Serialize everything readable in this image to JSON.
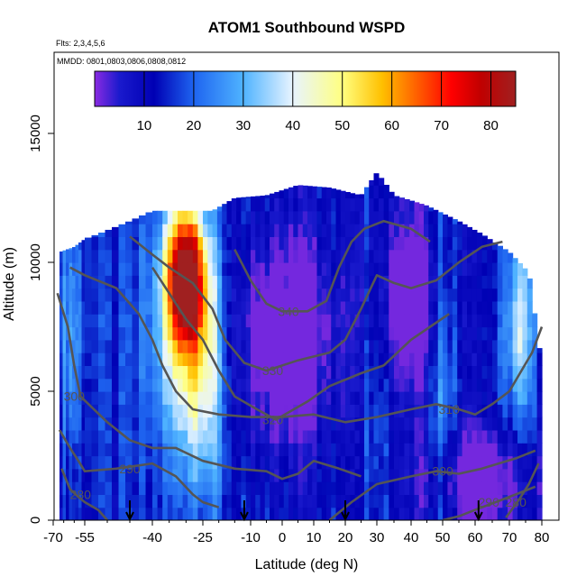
{
  "chart_data": {
    "type": "heatmap",
    "title": "ATOM1 Southbound WSPD",
    "flights_label": "Flts: 2,3,4,5,6",
    "dates_label": "MMDD: 0801,0803,0806,0808,0812",
    "xlabel": "Latitude (deg N)",
    "ylabel": "Altitude (m)",
    "xlim": [
      -70,
      85
    ],
    "ylim": [
      0,
      18000
    ],
    "x_ticks": [
      -70,
      -55,
      -40,
      -25,
      -10,
      0,
      10,
      20,
      30,
      40,
      50,
      60,
      70,
      80
    ],
    "y_ticks": [
      0,
      5000,
      10000,
      15000
    ],
    "colorbar": {
      "range": [
        0,
        85
      ],
      "ticks": [
        10,
        20,
        30,
        40,
        50,
        60,
        70,
        80
      ],
      "stops": [
        {
          "v": 0,
          "c": "#8a2be2"
        },
        {
          "v": 5,
          "c": "#1a1acd"
        },
        {
          "v": 12,
          "c": "#0000b4"
        },
        {
          "v": 20,
          "c": "#1e64f0"
        },
        {
          "v": 30,
          "c": "#4fb3ff"
        },
        {
          "v": 40,
          "c": "#e8f4ff"
        },
        {
          "v": 50,
          "c": "#ffff80"
        },
        {
          "v": 58,
          "c": "#ffc000"
        },
        {
          "v": 65,
          "c": "#ff6000"
        },
        {
          "v": 72,
          "c": "#ff0000"
        },
        {
          "v": 78,
          "c": "#c00000"
        },
        {
          "v": 85,
          "c": "#a02020"
        }
      ]
    },
    "envelope_top": [
      {
        "x": -67,
        "alt": 10400
      },
      {
        "x": -60,
        "alt": 10600
      },
      {
        "x": -52,
        "alt": 11100
      },
      {
        "x": -45,
        "alt": 11600
      },
      {
        "x": -40,
        "alt": 12000
      },
      {
        "x": -30,
        "alt": 12000
      },
      {
        "x": -22,
        "alt": 12000
      },
      {
        "x": -15,
        "alt": 12500
      },
      {
        "x": -5,
        "alt": 12600
      },
      {
        "x": 5,
        "alt": 13000
      },
      {
        "x": 15,
        "alt": 12900
      },
      {
        "x": 25,
        "alt": 12600
      },
      {
        "x": 30,
        "alt": 13500
      },
      {
        "x": 35,
        "alt": 12600
      },
      {
        "x": 45,
        "alt": 12200
      },
      {
        "x": 55,
        "alt": 11600
      },
      {
        "x": 62,
        "alt": 11100
      },
      {
        "x": 70,
        "alt": 10400
      },
      {
        "x": 76,
        "alt": 9600
      },
      {
        "x": 80,
        "alt": 6000
      }
    ],
    "wind_features": [
      {
        "x": -30,
        "alt": 9500,
        "value": 76,
        "sx": 4,
        "sy": 1800
      },
      {
        "x": -30,
        "alt": 7500,
        "value": 42,
        "sx": 7,
        "sy": 3500
      },
      {
        "x": -25,
        "alt": 5000,
        "value": 32,
        "sx": 5,
        "sy": 3500
      },
      {
        "x": -62,
        "alt": 7500,
        "value": 27,
        "sx": 5,
        "sy": 3500
      },
      {
        "x": 50,
        "alt": 5000,
        "value": 30,
        "sx": 3,
        "sy": 6000
      },
      {
        "x": 30,
        "alt": 6000,
        "value": 24,
        "sx": 3,
        "sy": 5000
      },
      {
        "x": 73,
        "alt": 7500,
        "value": 38,
        "sx": 3,
        "sy": 2500
      },
      {
        "x": 0,
        "alt": 7000,
        "value": -8,
        "sx": 12,
        "sy": 3000
      },
      {
        "x": 40,
        "alt": 8500,
        "value": -6,
        "sx": 8,
        "sy": 2500
      },
      {
        "x": 60,
        "alt": 1500,
        "value": -6,
        "sx": 12,
        "sy": 1500
      }
    ],
    "contours": [
      {
        "label": "280",
        "label_pos": {
          "x": -57,
          "alt": 1000
        },
        "path": [
          [
            -66,
            2000
          ],
          [
            -62,
            1200
          ],
          [
            -58,
            900
          ],
          [
            -55,
            700
          ],
          [
            -52,
            400
          ],
          [
            -50,
            0
          ]
        ]
      },
      {
        "label": "290",
        "label_pos": {
          "x": -45,
          "alt": 2000
        },
        "path": [
          [
            -67,
            3500
          ],
          [
            -62,
            2800
          ],
          [
            -58,
            2300
          ],
          [
            -55,
            1900
          ],
          [
            -48,
            2000
          ],
          [
            -40,
            2200
          ],
          [
            -33,
            1700
          ],
          [
            -28,
            1000
          ],
          [
            -25,
            700
          ],
          [
            -20,
            500
          ]
        ]
      },
      {
        "label": "300",
        "label_pos": {
          "x": -60,
          "alt": 4800
        },
        "path": [
          [
            -68,
            8800
          ],
          [
            -63,
            7500
          ],
          [
            -60,
            6000
          ],
          [
            -57,
            4800
          ],
          [
            -50,
            3800
          ],
          [
            -45,
            3100
          ],
          [
            -40,
            2800
          ],
          [
            -33,
            2800
          ],
          [
            -25,
            2300
          ],
          [
            -15,
            2000
          ],
          [
            -5,
            1900
          ],
          [
            0,
            1600
          ],
          [
            5,
            1800
          ],
          [
            10,
            2300
          ],
          [
            18,
            2000
          ],
          [
            25,
            1700
          ]
        ]
      },
      {
        "label": "300",
        "label_pos": {
          "x": 50,
          "alt": 1900
        },
        "path": [
          [
            15,
            0
          ],
          [
            22,
            700
          ],
          [
            30,
            1400
          ],
          [
            40,
            1700
          ],
          [
            48,
            1900
          ],
          [
            55,
            1800
          ],
          [
            62,
            2000
          ],
          [
            72,
            2400
          ],
          [
            78,
            2700
          ]
        ]
      },
      {
        "label": "290",
        "label_pos": {
          "x": 64,
          "alt": 700
        },
        "path": [
          [
            50,
            0
          ],
          [
            55,
            150
          ],
          [
            60,
            400
          ],
          [
            66,
            700
          ],
          [
            72,
            1000
          ],
          [
            78,
            1300
          ]
        ]
      },
      {
        "label": "280",
        "label_pos": {
          "x": 72,
          "alt": 700
        },
        "path": [
          [
            69,
            100
          ],
          [
            73,
            800
          ],
          [
            76,
            1400
          ],
          [
            79,
            2200
          ]
        ]
      },
      {
        "label": "310",
        "label_pos": {
          "x": 52,
          "alt": 4300
        },
        "path": [
          [
            -62,
            9800
          ],
          [
            -55,
            9500
          ],
          [
            -48,
            9000
          ],
          [
            -43,
            8000
          ],
          [
            -40,
            7000
          ],
          [
            -37,
            6000
          ],
          [
            -33,
            5000
          ],
          [
            -28,
            4300
          ],
          [
            -20,
            4100
          ],
          [
            -10,
            4000
          ],
          [
            0,
            4000
          ],
          [
            10,
            4100
          ],
          [
            20,
            3800
          ],
          [
            30,
            4000
          ],
          [
            40,
            4300
          ],
          [
            48,
            4500
          ],
          [
            55,
            4300
          ],
          [
            60,
            4100
          ],
          [
            65,
            4500
          ],
          [
            70,
            5000
          ],
          [
            77,
            6500
          ],
          [
            80,
            7500
          ]
        ]
      },
      {
        "label": "320",
        "label_pos": {
          "x": -3,
          "alt": 3900
        },
        "path": [
          [
            -40,
            9800
          ],
          [
            -35,
            8800
          ],
          [
            -30,
            7800
          ],
          [
            -25,
            7000
          ],
          [
            -20,
            5800
          ],
          [
            -15,
            4800
          ],
          [
            -8,
            4300
          ],
          [
            -2,
            3900
          ],
          [
            8,
            4600
          ],
          [
            15,
            5200
          ],
          [
            25,
            5700
          ],
          [
            32,
            6000
          ],
          [
            40,
            7000
          ],
          [
            46,
            7500
          ],
          [
            52,
            8000
          ]
        ]
      },
      {
        "label": "330",
        "label_pos": {
          "x": -3,
          "alt": 5800
        },
        "path": [
          [
            -45,
            11000
          ],
          [
            -40,
            10300
          ],
          [
            -35,
            9800
          ],
          [
            -28,
            9200
          ],
          [
            -22,
            8200
          ],
          [
            -18,
            7000
          ],
          [
            -12,
            6100
          ],
          [
            -5,
            5800
          ],
          [
            5,
            6200
          ],
          [
            15,
            6500
          ],
          [
            20,
            7000
          ],
          [
            25,
            8200
          ],
          [
            30,
            9500
          ],
          [
            35,
            9200
          ],
          [
            40,
            9000
          ],
          [
            48,
            9300
          ],
          [
            55,
            10000
          ],
          [
            62,
            10600
          ],
          [
            68,
            10800
          ]
        ]
      },
      {
        "label": "340",
        "label_pos": {
          "x": 2,
          "alt": 8100
        },
        "path": [
          [
            -15,
            10500
          ],
          [
            -10,
            9300
          ],
          [
            -5,
            8400
          ],
          [
            0,
            8100
          ],
          [
            8,
            8100
          ],
          [
            14,
            8500
          ],
          [
            18,
            9800
          ],
          [
            22,
            10800
          ],
          [
            26,
            11300
          ],
          [
            32,
            11600
          ],
          [
            40,
            11300
          ],
          [
            46,
            10800
          ]
        ]
      }
    ],
    "arrows_x": [
      -45,
      -12,
      20,
      61
    ]
  }
}
